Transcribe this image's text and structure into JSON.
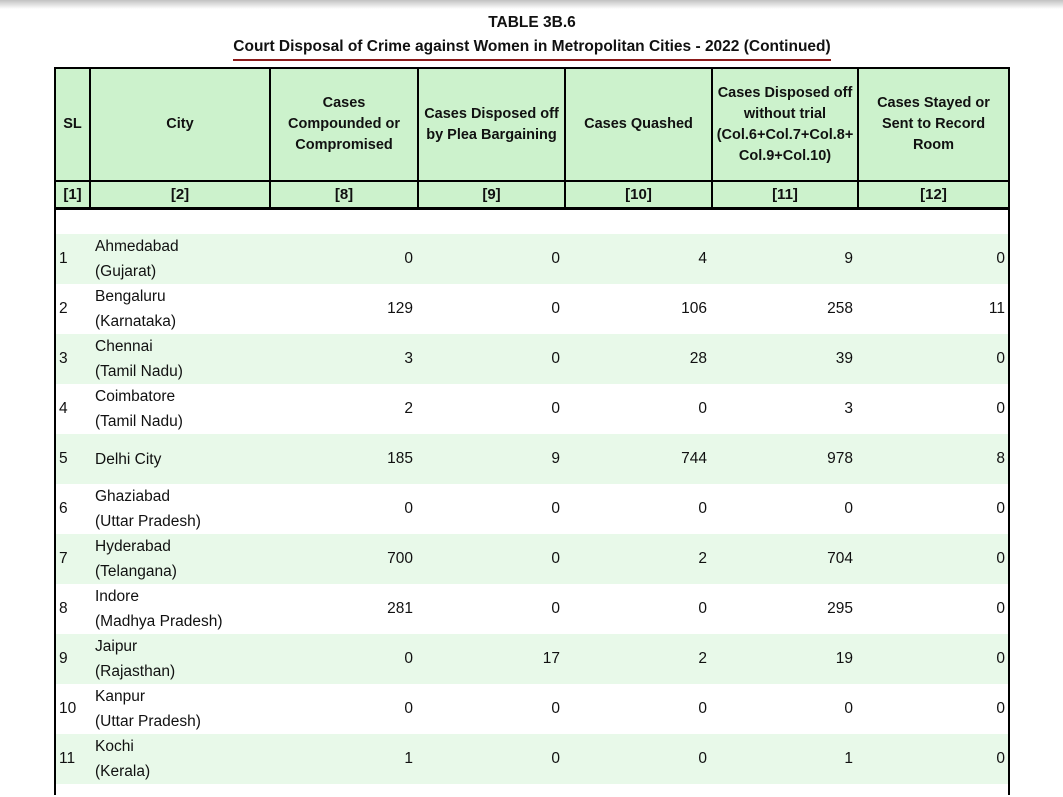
{
  "page": {
    "title": "TABLE 3B.6",
    "subtitle": "Court Disposal of Crime against Women in Metropolitan Cities - 2022 (Continued)"
  },
  "colors": {
    "header_bg": "#ccf2cc",
    "stripe_bg": "#e8f9e9",
    "border": "#000000",
    "underline": "#8b1a1a"
  },
  "table": {
    "columns": [
      {
        "label": "SL",
        "num": "[1]"
      },
      {
        "label": "City",
        "num": "[2]"
      },
      {
        "label": "Cases Compounded or Compromised",
        "num": "[8]"
      },
      {
        "label": "Cases Disposed off by Plea Bargaining",
        "num": "[9]"
      },
      {
        "label": "Cases Quashed",
        "num": "[10]"
      },
      {
        "label": "Cases Disposed off without trial (Col.6+Col.7+Col.8+Col.9+Col.10)",
        "num": "[11]"
      },
      {
        "label": "Cases Stayed or Sent to Record Room",
        "num": "[12]"
      }
    ],
    "rows": [
      {
        "sl": "1",
        "city": "Ahmedabad",
        "state": "(Gujarat)",
        "values": [
          "0",
          "0",
          "4",
          "9",
          "0"
        ]
      },
      {
        "sl": "2",
        "city": "Bengaluru",
        "state": "(Karnataka)",
        "values": [
          "129",
          "0",
          "106",
          "258",
          "11"
        ]
      },
      {
        "sl": "3",
        "city": "Chennai",
        "state": "(Tamil Nadu)",
        "values": [
          "3",
          "0",
          "28",
          "39",
          "0"
        ]
      },
      {
        "sl": "4",
        "city": "Coimbatore",
        "state": "(Tamil Nadu)",
        "values": [
          "2",
          "0",
          "0",
          "3",
          "0"
        ]
      },
      {
        "sl": "5",
        "city": "Delhi City",
        "state": "",
        "values": [
          "185",
          "9",
          "744",
          "978",
          "8"
        ]
      },
      {
        "sl": "6",
        "city": "Ghaziabad",
        "state": "(Uttar Pradesh)",
        "values": [
          "0",
          "0",
          "0",
          "0",
          "0"
        ]
      },
      {
        "sl": "7",
        "city": "Hyderabad",
        "state": "(Telangana)",
        "values": [
          "700",
          "0",
          "2",
          "704",
          "0"
        ]
      },
      {
        "sl": "8",
        "city": "Indore",
        "state": "(Madhya Pradesh)",
        "values": [
          "281",
          "0",
          "0",
          "295",
          "0"
        ]
      },
      {
        "sl": "9",
        "city": "Jaipur",
        "state": "(Rajasthan)",
        "values": [
          "0",
          "17",
          "2",
          "19",
          "0"
        ]
      },
      {
        "sl": "10",
        "city": "Kanpur",
        "state": "(Uttar Pradesh)",
        "values": [
          "0",
          "0",
          "0",
          "0",
          "0"
        ]
      },
      {
        "sl": "11",
        "city": "Kochi",
        "state": "(Kerala)",
        "values": [
          "1",
          "0",
          "0",
          "1",
          "0"
        ]
      }
    ]
  }
}
